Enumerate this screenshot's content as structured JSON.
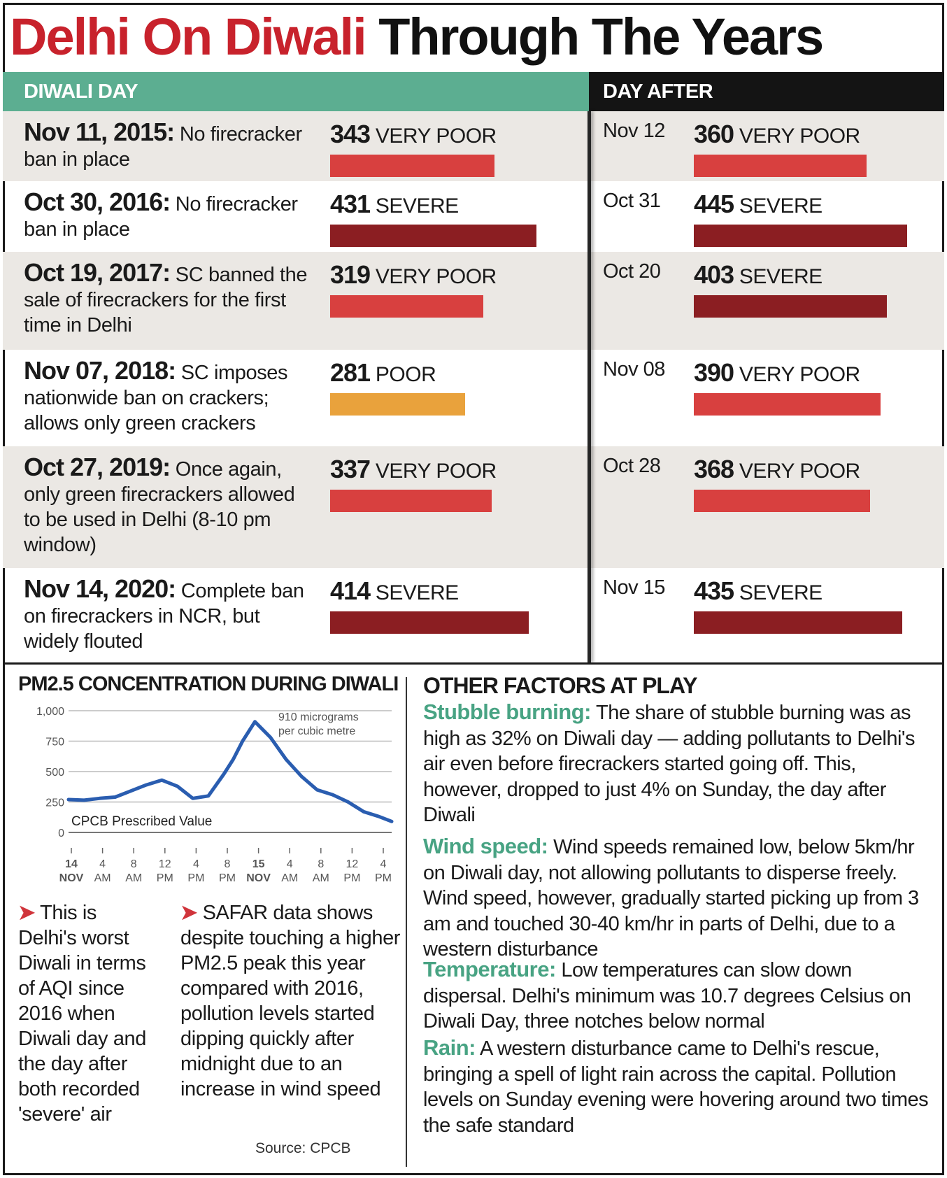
{
  "title": {
    "red": "Delhi On Diwali",
    "black": "Through The Years"
  },
  "headers": {
    "diwali_day": "DIWALI DAY",
    "day_after": "DAY AFTER"
  },
  "rows": [
    {
      "date": "Nov 11, 2015:",
      "text": " No firecracker ban in place",
      "aqi": "343",
      "category": "VERY POOR",
      "color": "#d8403f",
      "after_date": "Nov 12",
      "after_aqi": "360",
      "after_category": "VERY POOR",
      "after_color": "#d8403f"
    },
    {
      "date": "Oct 30, 2016:",
      "text": " No firecracker ban in place",
      "aqi": "431",
      "category": "SEVERE",
      "color": "#8b1e22",
      "after_date": "Oct 31",
      "after_aqi": "445",
      "after_category": "SEVERE",
      "after_color": "#8b1e22"
    },
    {
      "date": "Oct 19, 2017:",
      "text": " SC banned the sale of firecrackers for the first time in Delhi",
      "aqi": "319",
      "category": "VERY POOR",
      "color": "#d8403f",
      "after_date": "Oct 20",
      "after_aqi": "403",
      "after_category": "SEVERE",
      "after_color": "#8b1e22"
    },
    {
      "date": "Nov 07, 2018:",
      "text": " SC imposes nationwide ban on crackers; allows only green crackers",
      "aqi": "281",
      "category": "POOR",
      "color": "#e9a23c",
      "after_date": "Nov 08",
      "after_aqi": "390",
      "after_category": "VERY POOR",
      "after_color": "#d8403f"
    },
    {
      "date": "Oct 27, 2019:",
      "text": " Once again, only green firecrackers allowed to be used in Delhi (8-10 pm window)",
      "aqi": "337",
      "category": "VERY POOR",
      "color": "#d8403f",
      "after_date": "Oct 28",
      "after_aqi": "368",
      "after_category": "VERY POOR",
      "after_color": "#d8403f"
    },
    {
      "date": "Nov 14, 2020:",
      "text": " Complete ban on firecrackers in NCR, but widely flouted",
      "aqi": "414",
      "category": "SEVERE",
      "color": "#8b1e22",
      "after_date": "Nov 15",
      "after_aqi": "435",
      "after_category": "SEVERE",
      "after_color": "#8b1e22"
    }
  ],
  "pm_section": {
    "heading": "PM2.5 CONCENTRATION DURING DIWALI",
    "annotation_line1": "910 micrograms",
    "annotation_line2": "per cubic metre",
    "prescribed_label": "CPCB Prescribed Value",
    "note1_lead": "This is",
    "note1_rest": "Delhi's worst Diwali in terms of AQI since 2016 when Diwali day and the day after both recorded 'severe' air",
    "note2_lead": "SAFAR data shows",
    "note2_rest": "despite touching a higher PM2.5 peak this year compared with 2016, pollution levels started dipping quickly after  midnight due to an increase in wind speed",
    "source": "Source: CPCB"
  },
  "factors": {
    "heading": "OTHER FACTORS AT PLAY",
    "items": [
      {
        "label": "Stubble burning:",
        "text": " The share of stubble burning was as high as 32% on Diwali day — adding pollutants to Delhi's air even before firecrackers started going off. This, however, dropped to just 4% on Sunday, the day after Diwali"
      },
      {
        "label": "Wind speed:",
        "text": " Wind speeds remained low, below 5km/hr on Diwali day, not allowing pollutants to disperse freely. Wind speed, however, gradually started picking up from 3 am and touched 30-40 km/hr in parts of Delhi, due to a western disturbance"
      },
      {
        "label": "Temperature:",
        "text": " Low temperatures can slow down dispersal. Delhi's minimum was 10.7 degrees Celsius on Diwali Day, three notches below normal"
      },
      {
        "label": "Rain:",
        "text": " A western disturbance came to Delhi's rescue, bringing a spell of light rain across the capital. Pollution levels on Sunday evening were hovering around two times the safe standard"
      }
    ]
  },
  "chart_data": [
    {
      "type": "bar",
      "title": "DIWALI DAY",
      "categories": [
        "Nov 11, 2015",
        "Oct 30, 2016",
        "Oct 19, 2017",
        "Nov 07, 2018",
        "Oct 27, 2019",
        "Nov 14, 2020"
      ],
      "values": [
        343,
        431,
        319,
        281,
        337,
        414
      ],
      "orientation": "horizontal"
    },
    {
      "type": "bar",
      "title": "DAY AFTER",
      "categories": [
        "Nov 12",
        "Oct 31",
        "Oct 20",
        "Nov 08",
        "Oct 28",
        "Nov 15"
      ],
      "values": [
        360,
        445,
        403,
        390,
        368,
        435
      ],
      "orientation": "horizontal"
    },
    {
      "type": "line",
      "title": "PM2.5 CONCENTRATION DURING DIWALI",
      "y_ticks": [
        "1,000",
        "750",
        "500",
        "250",
        "0"
      ],
      "y_tick_values": [
        1000,
        750,
        500,
        250,
        0
      ],
      "ylim": [
        0,
        1000
      ],
      "x_ticks": [
        [
          "14",
          "NOV"
        ],
        [
          "4",
          "AM"
        ],
        [
          "8",
          "AM"
        ],
        [
          "12",
          "PM"
        ],
        [
          "4",
          "PM"
        ],
        [
          "8",
          "PM"
        ],
        [
          "15",
          "NOV"
        ],
        [
          "4",
          "AM"
        ],
        [
          "8",
          "AM"
        ],
        [
          "12",
          "PM"
        ],
        [
          "4",
          "PM"
        ]
      ],
      "x_range": [
        0,
        10.4
      ],
      "grid": true,
      "reference_value": 60,
      "series": [
        {
          "color": "#2a5db0",
          "x": [
            0,
            0.5,
            1,
            1.5,
            2,
            2.5,
            3,
            3.5,
            4,
            4.5,
            5,
            5.3,
            5.6,
            6,
            6.5,
            7,
            7.5,
            8,
            8.5,
            9,
            9.5,
            10,
            10.4
          ],
          "y": [
            270,
            265,
            280,
            290,
            340,
            390,
            430,
            380,
            280,
            300,
            480,
            600,
            750,
            910,
            780,
            600,
            460,
            350,
            310,
            250,
            170,
            130,
            90
          ]
        }
      ]
    }
  ]
}
